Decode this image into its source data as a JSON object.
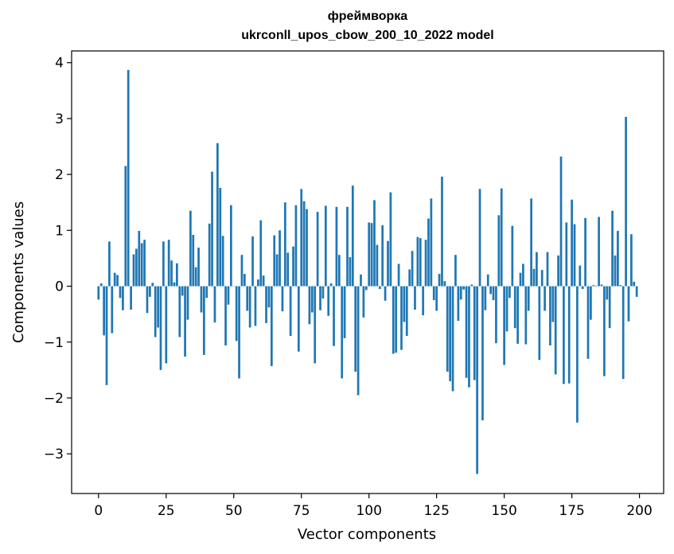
{
  "chart_data": {
    "type": "bar",
    "title_line1": "фреймворка",
    "title_line2": "ukrconll_upos_cbow_200_10_2022 model",
    "xlabel": "Vector components",
    "ylabel": "Components values",
    "xlim": [
      -9.95,
      208.95
    ],
    "ylim": [
      -3.71,
      4.21
    ],
    "xticks": [
      0,
      25,
      50,
      75,
      100,
      125,
      150,
      175,
      200
    ],
    "yticks": [
      -3,
      -2,
      -1,
      0,
      1,
      2,
      3,
      4
    ],
    "ytick_labels": [
      "−3",
      "−2",
      "−1",
      "0",
      "1",
      "2",
      "3",
      "4"
    ],
    "grid": false,
    "bar_color": "#1f77b4",
    "values": [
      -0.24,
      0.05,
      -0.88,
      -1.77,
      0.8,
      -0.84,
      0.24,
      0.2,
      -0.21,
      -0.43,
      2.15,
      3.87,
      -0.42,
      0.57,
      0.67,
      0.99,
      0.77,
      0.83,
      -0.48,
      -0.19,
      0.06,
      -0.91,
      -0.74,
      -1.5,
      0.8,
      -1.38,
      0.83,
      0.46,
      0.07,
      0.41,
      -0.91,
      -0.17,
      -1.26,
      -0.6,
      1.35,
      0.92,
      0.34,
      0.69,
      -0.47,
      -1.23,
      -0.21,
      1.12,
      2.05,
      -0.65,
      2.56,
      1.76,
      0.9,
      -1.06,
      -0.33,
      1.45,
      0.0,
      -0.98,
      -1.65,
      0.56,
      0.22,
      -0.44,
      -0.74,
      0.89,
      -0.71,
      0.12,
      1.18,
      0.19,
      -0.66,
      -0.38,
      -1.43,
      0.91,
      0.57,
      1.0,
      -0.45,
      1.5,
      0.6,
      -0.89,
      0.71,
      1.45,
      -1.17,
      1.74,
      1.52,
      1.38,
      -0.68,
      -0.47,
      -1.38,
      1.33,
      -0.43,
      -0.22,
      1.44,
      -0.53,
      0.05,
      -1.07,
      1.42,
      0.56,
      -1.65,
      -0.93,
      1.42,
      0.52,
      1.8,
      -1.53,
      -1.95,
      0.21,
      -0.56,
      -0.07,
      1.14,
      1.13,
      1.54,
      0.74,
      -0.05,
      1.09,
      -0.26,
      0.81,
      1.68,
      -1.21,
      -1.19,
      0.4,
      -1.14,
      -0.64,
      -0.89,
      0.3,
      0.63,
      -0.42,
      0.88,
      0.86,
      -0.52,
      0.83,
      1.21,
      1.57,
      -0.25,
      -0.44,
      0.22,
      1.96,
      0.09,
      -1.53,
      -1.7,
      -1.88,
      0.56,
      -0.62,
      -0.24,
      -0.06,
      -1.64,
      -1.81,
      0.03,
      -1.68,
      -3.36,
      1.74,
      -2.4,
      -0.43,
      0.21,
      -0.14,
      -0.25,
      -1.02,
      1.27,
      1.75,
      -1.41,
      -0.81,
      -0.21,
      1.08,
      -0.75,
      -1.03,
      0.24,
      0.4,
      -1.04,
      -0.44,
      1.57,
      0.31,
      0.61,
      -1.32,
      0.29,
      -0.44,
      0.61,
      -1.06,
      -0.64,
      -1.58,
      0.55,
      2.32,
      -1.75,
      1.14,
      -1.74,
      1.55,
      1.11,
      -2.44,
      0.37,
      -0.05,
      1.22,
      -1.3,
      -0.6,
      0.02,
      0.01,
      1.24,
      0.03,
      -1.61,
      -0.24,
      -0.75,
      1.35,
      0.55,
      0.99,
      0.02,
      -1.66,
      3.03,
      -0.63,
      0.93,
      0.08,
      -0.19
    ]
  }
}
